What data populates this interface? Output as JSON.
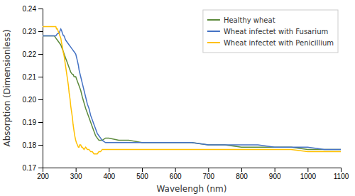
{
  "chart_data": {
    "type": "line",
    "xlabel": "Wavelengh (nm)",
    "ylabel": "Absorption (Dimensionless)",
    "xlim": [
      200,
      1100
    ],
    "ylim": [
      0.17,
      0.24
    ],
    "xticks": [
      200,
      300,
      400,
      500,
      600,
      700,
      800,
      900,
      1000,
      1100
    ],
    "yticks": [
      0.17,
      0.18,
      0.19,
      {
        "value": 0.2,
        "label": "0.20"
      },
      0.21,
      0.22,
      0.23,
      0.24
    ],
    "grid": false,
    "legend": "top-right",
    "series": [
      {
        "name": "Healthy wheat",
        "color": "#5c8a3c",
        "x": [
          200,
          205,
          210,
          215,
          220,
          225,
          230,
          235,
          240,
          245,
          250,
          255,
          260,
          265,
          270,
          275,
          280,
          285,
          290,
          292,
          295,
          298,
          300,
          305,
          310,
          315,
          320,
          330,
          340,
          350,
          360,
          370,
          380,
          390,
          400,
          430,
          460,
          500,
          550,
          600,
          620,
          650,
          700,
          750,
          800,
          850,
          900,
          950,
          1000,
          1050,
          1100
        ],
        "values": [
          0.228,
          0.228,
          0.228,
          0.228,
          0.228,
          0.228,
          0.228,
          0.228,
          0.227,
          0.226,
          0.225,
          0.224,
          0.222,
          0.22,
          0.218,
          0.216,
          0.214,
          0.212,
          0.211,
          0.211,
          0.21,
          0.21,
          0.21,
          0.208,
          0.206,
          0.204,
          0.201,
          0.196,
          0.192,
          0.188,
          0.184,
          0.182,
          0.182,
          0.183,
          0.183,
          0.182,
          0.182,
          0.181,
          0.181,
          0.181,
          0.181,
          0.181,
          0.18,
          0.18,
          0.179,
          0.179,
          0.179,
          0.179,
          0.178,
          0.178,
          0.178
        ]
      },
      {
        "name": "Wheat infectet with Fusarium",
        "color": "#4472c4",
        "x": [
          200,
          205,
          210,
          215,
          220,
          225,
          230,
          235,
          240,
          245,
          250,
          252,
          255,
          258,
          260,
          263,
          265,
          267,
          270,
          275,
          280,
          285,
          290,
          295,
          300,
          305,
          308,
          310,
          315,
          320,
          325,
          330,
          335,
          340,
          345,
          350,
          355,
          360,
          365,
          370,
          375,
          380,
          390,
          400,
          450,
          500,
          550,
          600,
          650,
          700,
          750,
          800,
          850,
          900,
          950,
          1000,
          1050,
          1100
        ],
        "values": [
          0.228,
          0.228,
          0.228,
          0.228,
          0.228,
          0.228,
          0.228,
          0.228,
          0.228,
          0.229,
          0.229,
          0.23,
          0.231,
          0.23,
          0.229,
          0.228,
          0.228,
          0.227,
          0.226,
          0.225,
          0.224,
          0.223,
          0.222,
          0.221,
          0.22,
          0.217,
          0.215,
          0.213,
          0.21,
          0.207,
          0.204,
          0.201,
          0.198,
          0.196,
          0.193,
          0.191,
          0.189,
          0.187,
          0.185,
          0.184,
          0.183,
          0.182,
          0.181,
          0.181,
          0.181,
          0.181,
          0.181,
          0.181,
          0.181,
          0.18,
          0.18,
          0.18,
          0.18,
          0.179,
          0.179,
          0.179,
          0.178,
          0.178
        ]
      },
      {
        "name": "Wheat infectet with Penicillium",
        "color": "#ffc000",
        "x": [
          200,
          202,
          205,
          208,
          210,
          213,
          215,
          218,
          220,
          222,
          225,
          227,
          230,
          232,
          235,
          237,
          240,
          242,
          245,
          247,
          250,
          252,
          255,
          257,
          260,
          262,
          265,
          267,
          270,
          272,
          275,
          278,
          280,
          283,
          285,
          287,
          290,
          292,
          295,
          297,
          300,
          302,
          305,
          308,
          310,
          312,
          315,
          318,
          320,
          325,
          330,
          335,
          340,
          345,
          350,
          355,
          360,
          365,
          370,
          375,
          380,
          390,
          400,
          450,
          500,
          550,
          600,
          650,
          700,
          750,
          800,
          850,
          900,
          950,
          1000,
          1050,
          1100
        ],
        "values": [
          0.232,
          0.232,
          0.232,
          0.232,
          0.232,
          0.232,
          0.232,
          0.232,
          0.232,
          0.232,
          0.232,
          0.232,
          0.232,
          0.232,
          0.232,
          0.232,
          0.232,
          0.231,
          0.231,
          0.23,
          0.229,
          0.228,
          0.227,
          0.225,
          0.223,
          0.221,
          0.219,
          0.217,
          0.214,
          0.212,
          0.209,
          0.206,
          0.203,
          0.2,
          0.197,
          0.195,
          0.192,
          0.189,
          0.186,
          0.184,
          0.182,
          0.181,
          0.18,
          0.179,
          0.179,
          0.18,
          0.18,
          0.179,
          0.179,
          0.178,
          0.179,
          0.178,
          0.178,
          0.177,
          0.177,
          0.176,
          0.176,
          0.176,
          0.177,
          0.177,
          0.178,
          0.178,
          0.178,
          0.178,
          0.178,
          0.178,
          0.178,
          0.178,
          0.178,
          0.178,
          0.178,
          0.178,
          0.178,
          0.178,
          0.177,
          0.177,
          0.177
        ]
      }
    ]
  }
}
